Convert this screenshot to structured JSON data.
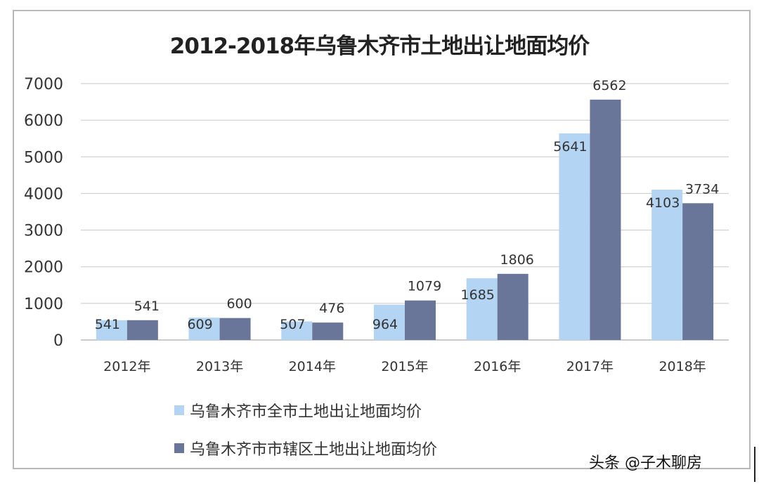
{
  "chart_data": {
    "type": "bar",
    "title": "2012-2018年乌鲁木齐市土地出让地面均价",
    "categories": [
      "2012年",
      "2013年",
      "2014年",
      "2015年",
      "2016年",
      "2017年",
      "2018年"
    ],
    "series": [
      {
        "name": "乌鲁木齐市全市土地出让地面均价",
        "values": [
          541,
          609,
          507,
          964,
          1685,
          5641,
          4103
        ],
        "color": "#b3d4f2"
      },
      {
        "name": "乌鲁木齐市市辖区土地出让地面均价",
        "values": [
          541,
          600,
          476,
          1079,
          1806,
          6562,
          3734
        ],
        "color": "#6a7699"
      }
    ],
    "ylim": [
      0,
      7000
    ],
    "yticks": [
      0,
      1000,
      2000,
      3000,
      4000,
      5000,
      6000,
      7000
    ],
    "grid": true,
    "legend": "bottom-left",
    "xlabel": "",
    "ylabel": ""
  },
  "watermark": "头条 @子木聊房"
}
